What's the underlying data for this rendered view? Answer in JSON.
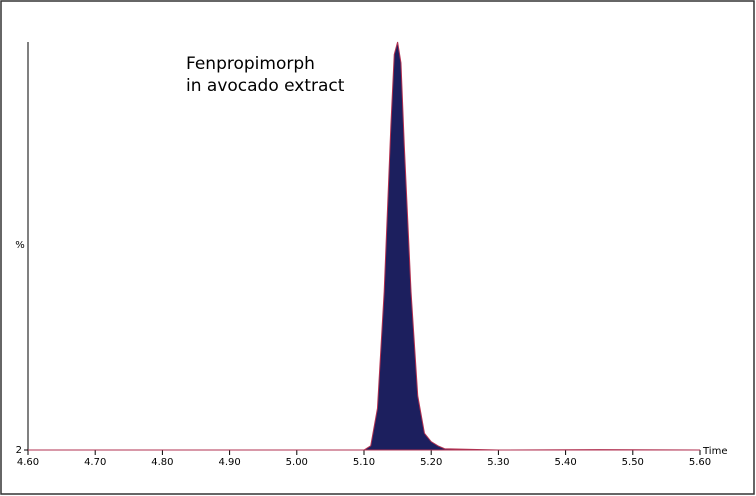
{
  "chart_data": {
    "type": "area",
    "annotation": [
      "Fenpropimorph",
      "in avocado extract"
    ],
    "ylabel": "%",
    "xlabel": "Time",
    "x": [
      4.6,
      5.1,
      5.11,
      5.12,
      5.13,
      5.14,
      5.145,
      5.15,
      5.155,
      5.16,
      5.17,
      5.18,
      5.19,
      5.2,
      5.21,
      5.22,
      5.3,
      5.45,
      5.6
    ],
    "series": [
      {
        "color": "#1c1f5e",
        "values": [
          2,
          2,
          3,
          12,
          40,
          80,
          97,
          100,
          95,
          75,
          40,
          15,
          6,
          4,
          3,
          2.3,
          2,
          2.1,
          2
        ]
      }
    ],
    "outline": "#b03050",
    "xlim": [
      4.6,
      5.6
    ],
    "xticks": [
      {
        "value": 4.6,
        "label": "4.60"
      },
      {
        "value": 4.7,
        "label": "4.70"
      },
      {
        "value": 4.8,
        "label": "4.80"
      },
      {
        "value": 4.9,
        "label": "4.90"
      },
      {
        "value": 5.0,
        "label": "5.00"
      },
      {
        "value": 5.1,
        "label": "5.10"
      },
      {
        "value": 5.2,
        "label": "5.20"
      },
      {
        "value": 5.3,
        "label": "5.30"
      },
      {
        "value": 5.4,
        "label": "5.40"
      },
      {
        "value": 5.5,
        "label": "5.50"
      },
      {
        "value": 5.6,
        "label": "5.60"
      }
    ],
    "ylim": [
      2,
      100
    ],
    "yticks": [
      2
    ]
  }
}
